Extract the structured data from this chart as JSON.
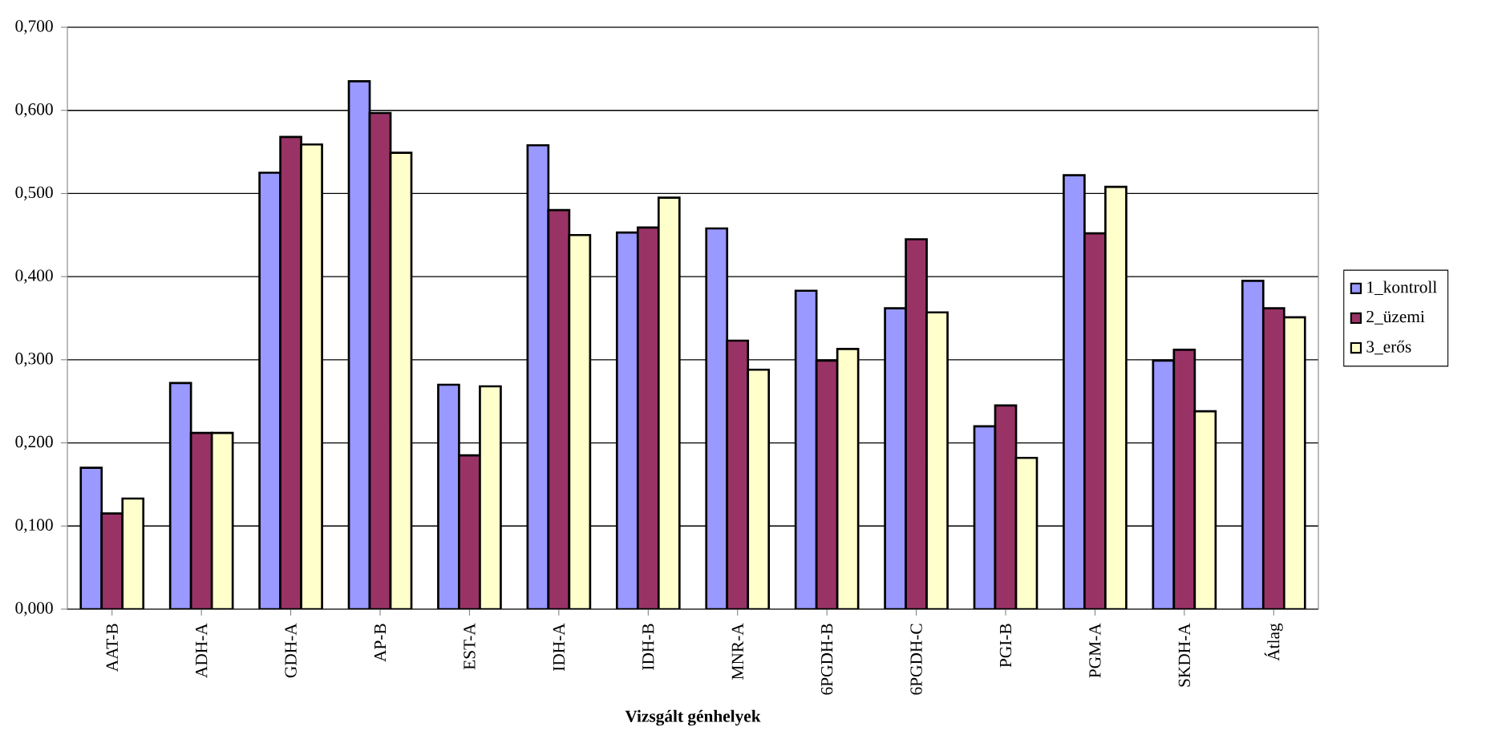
{
  "chart_data": {
    "type": "bar",
    "xlabel": "Vizsgált génhelyek",
    "categories": [
      "AAT-B",
      "ADH-A",
      "GDH-A",
      "AP-B",
      "EST-A",
      "IDH-A",
      "IDH-B",
      "MNR-A",
      "6PGDH-B",
      "6PGDH-C",
      "PGI-B",
      "PGM-A",
      "SKDH-A",
      "Átlag"
    ],
    "series": [
      {
        "name": "1_kontroll",
        "color": "#9999ff",
        "values": [
          0.17,
          0.272,
          0.525,
          0.635,
          0.27,
          0.558,
          0.453,
          0.458,
          0.383,
          0.362,
          0.22,
          0.522,
          0.299,
          0.395
        ]
      },
      {
        "name": "2_üzemi",
        "color": "#993366",
        "values": [
          0.115,
          0.212,
          0.568,
          0.597,
          0.185,
          0.48,
          0.459,
          0.323,
          0.299,
          0.445,
          0.245,
          0.452,
          0.312,
          0.362
        ]
      },
      {
        "name": "3_erős",
        "color": "#ffffcc",
        "values": [
          0.133,
          0.212,
          0.559,
          0.549,
          0.268,
          0.45,
          0.495,
          0.288,
          0.313,
          0.357,
          0.182,
          0.508,
          0.238,
          0.351
        ]
      }
    ],
    "ylim": [
      0,
      0.7
    ],
    "yticks": [
      {
        "value": 0,
        "label": "0,000"
      },
      {
        "value": 0.1,
        "label": "0,100"
      },
      {
        "value": 0.2,
        "label": "0,200"
      },
      {
        "value": 0.3,
        "label": "0,300"
      },
      {
        "value": 0.4,
        "label": "0,400"
      },
      {
        "value": 0.5,
        "label": "0,500"
      },
      {
        "value": 0.6,
        "label": "0,600"
      },
      {
        "value": 0.7,
        "label": "0,700"
      }
    ],
    "grid": "y",
    "legend": "right"
  }
}
